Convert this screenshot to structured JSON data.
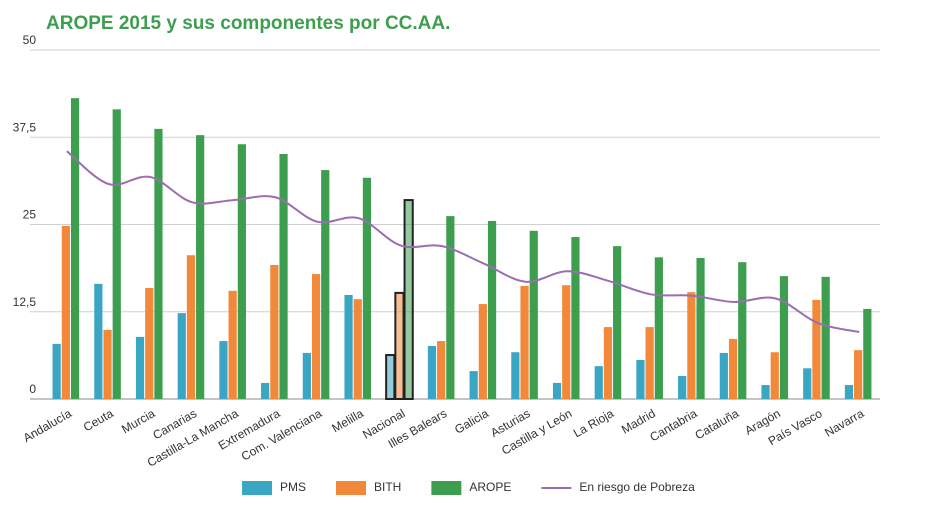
{
  "chart_data": {
    "type": "bar-line",
    "title": "AROPE 2015 y sus componentes por CC.AA.",
    "categories": [
      "Andalucía",
      "Ceuta",
      "Murcia",
      "Canarias",
      "Castilla-La Mancha",
      "Extremadura",
      "Com. Valenciana",
      "Melilla",
      "Nacional",
      "Illes Balears",
      "Galicia",
      "Asturias",
      "Castilla y León",
      "La Rioja",
      "Madrid",
      "Cantabria",
      "Cataluña",
      "Aragón",
      "País Vasco",
      "Navarra"
    ],
    "highlight": "Nacional",
    "series": [
      {
        "name": "PMS",
        "color": "#3aa6c4",
        "kind": "bar",
        "values": [
          7.9,
          16.5,
          8.9,
          12.3,
          8.3,
          2.3,
          6.6,
          14.9,
          6.3,
          7.6,
          4.0,
          6.7,
          2.3,
          4.7,
          5.6,
          3.3,
          6.6,
          2.0,
          4.4,
          2.0
        ]
      },
      {
        "name": "BITH",
        "color": "#f2883a",
        "kind": "bar",
        "values": [
          24.8,
          9.9,
          15.9,
          20.6,
          15.5,
          19.2,
          17.9,
          14.3,
          15.2,
          8.3,
          13.6,
          16.2,
          16.3,
          10.3,
          10.3,
          15.3,
          8.6,
          6.7,
          14.2,
          7.0
        ]
      },
      {
        "name": "AROPE",
        "color": "#3d9e4f",
        "kind": "bar",
        "values": [
          43.1,
          41.5,
          38.7,
          37.8,
          36.5,
          35.1,
          32.8,
          31.7,
          28.5,
          26.2,
          25.5,
          24.1,
          23.2,
          21.9,
          20.3,
          20.2,
          19.6,
          17.6,
          17.5,
          12.9
        ]
      },
      {
        "name": "En riesgo de Pobreza",
        "color": "#9c6db0",
        "kind": "line",
        "values": [
          35.5,
          30.8,
          31.8,
          28.2,
          28.5,
          28.9,
          25.4,
          25.9,
          22.0,
          21.9,
          19.4,
          16.8,
          18.3,
          16.9,
          15.0,
          14.8,
          13.9,
          14.4,
          10.9,
          9.6
        ]
      }
    ],
    "ylim": [
      0,
      50
    ],
    "yticks": [
      0,
      {
        "value": 12.5,
        "label": "12,5"
      },
      25,
      {
        "value": 37.5,
        "label": "37,5"
      },
      50
    ],
    "grid": true
  }
}
